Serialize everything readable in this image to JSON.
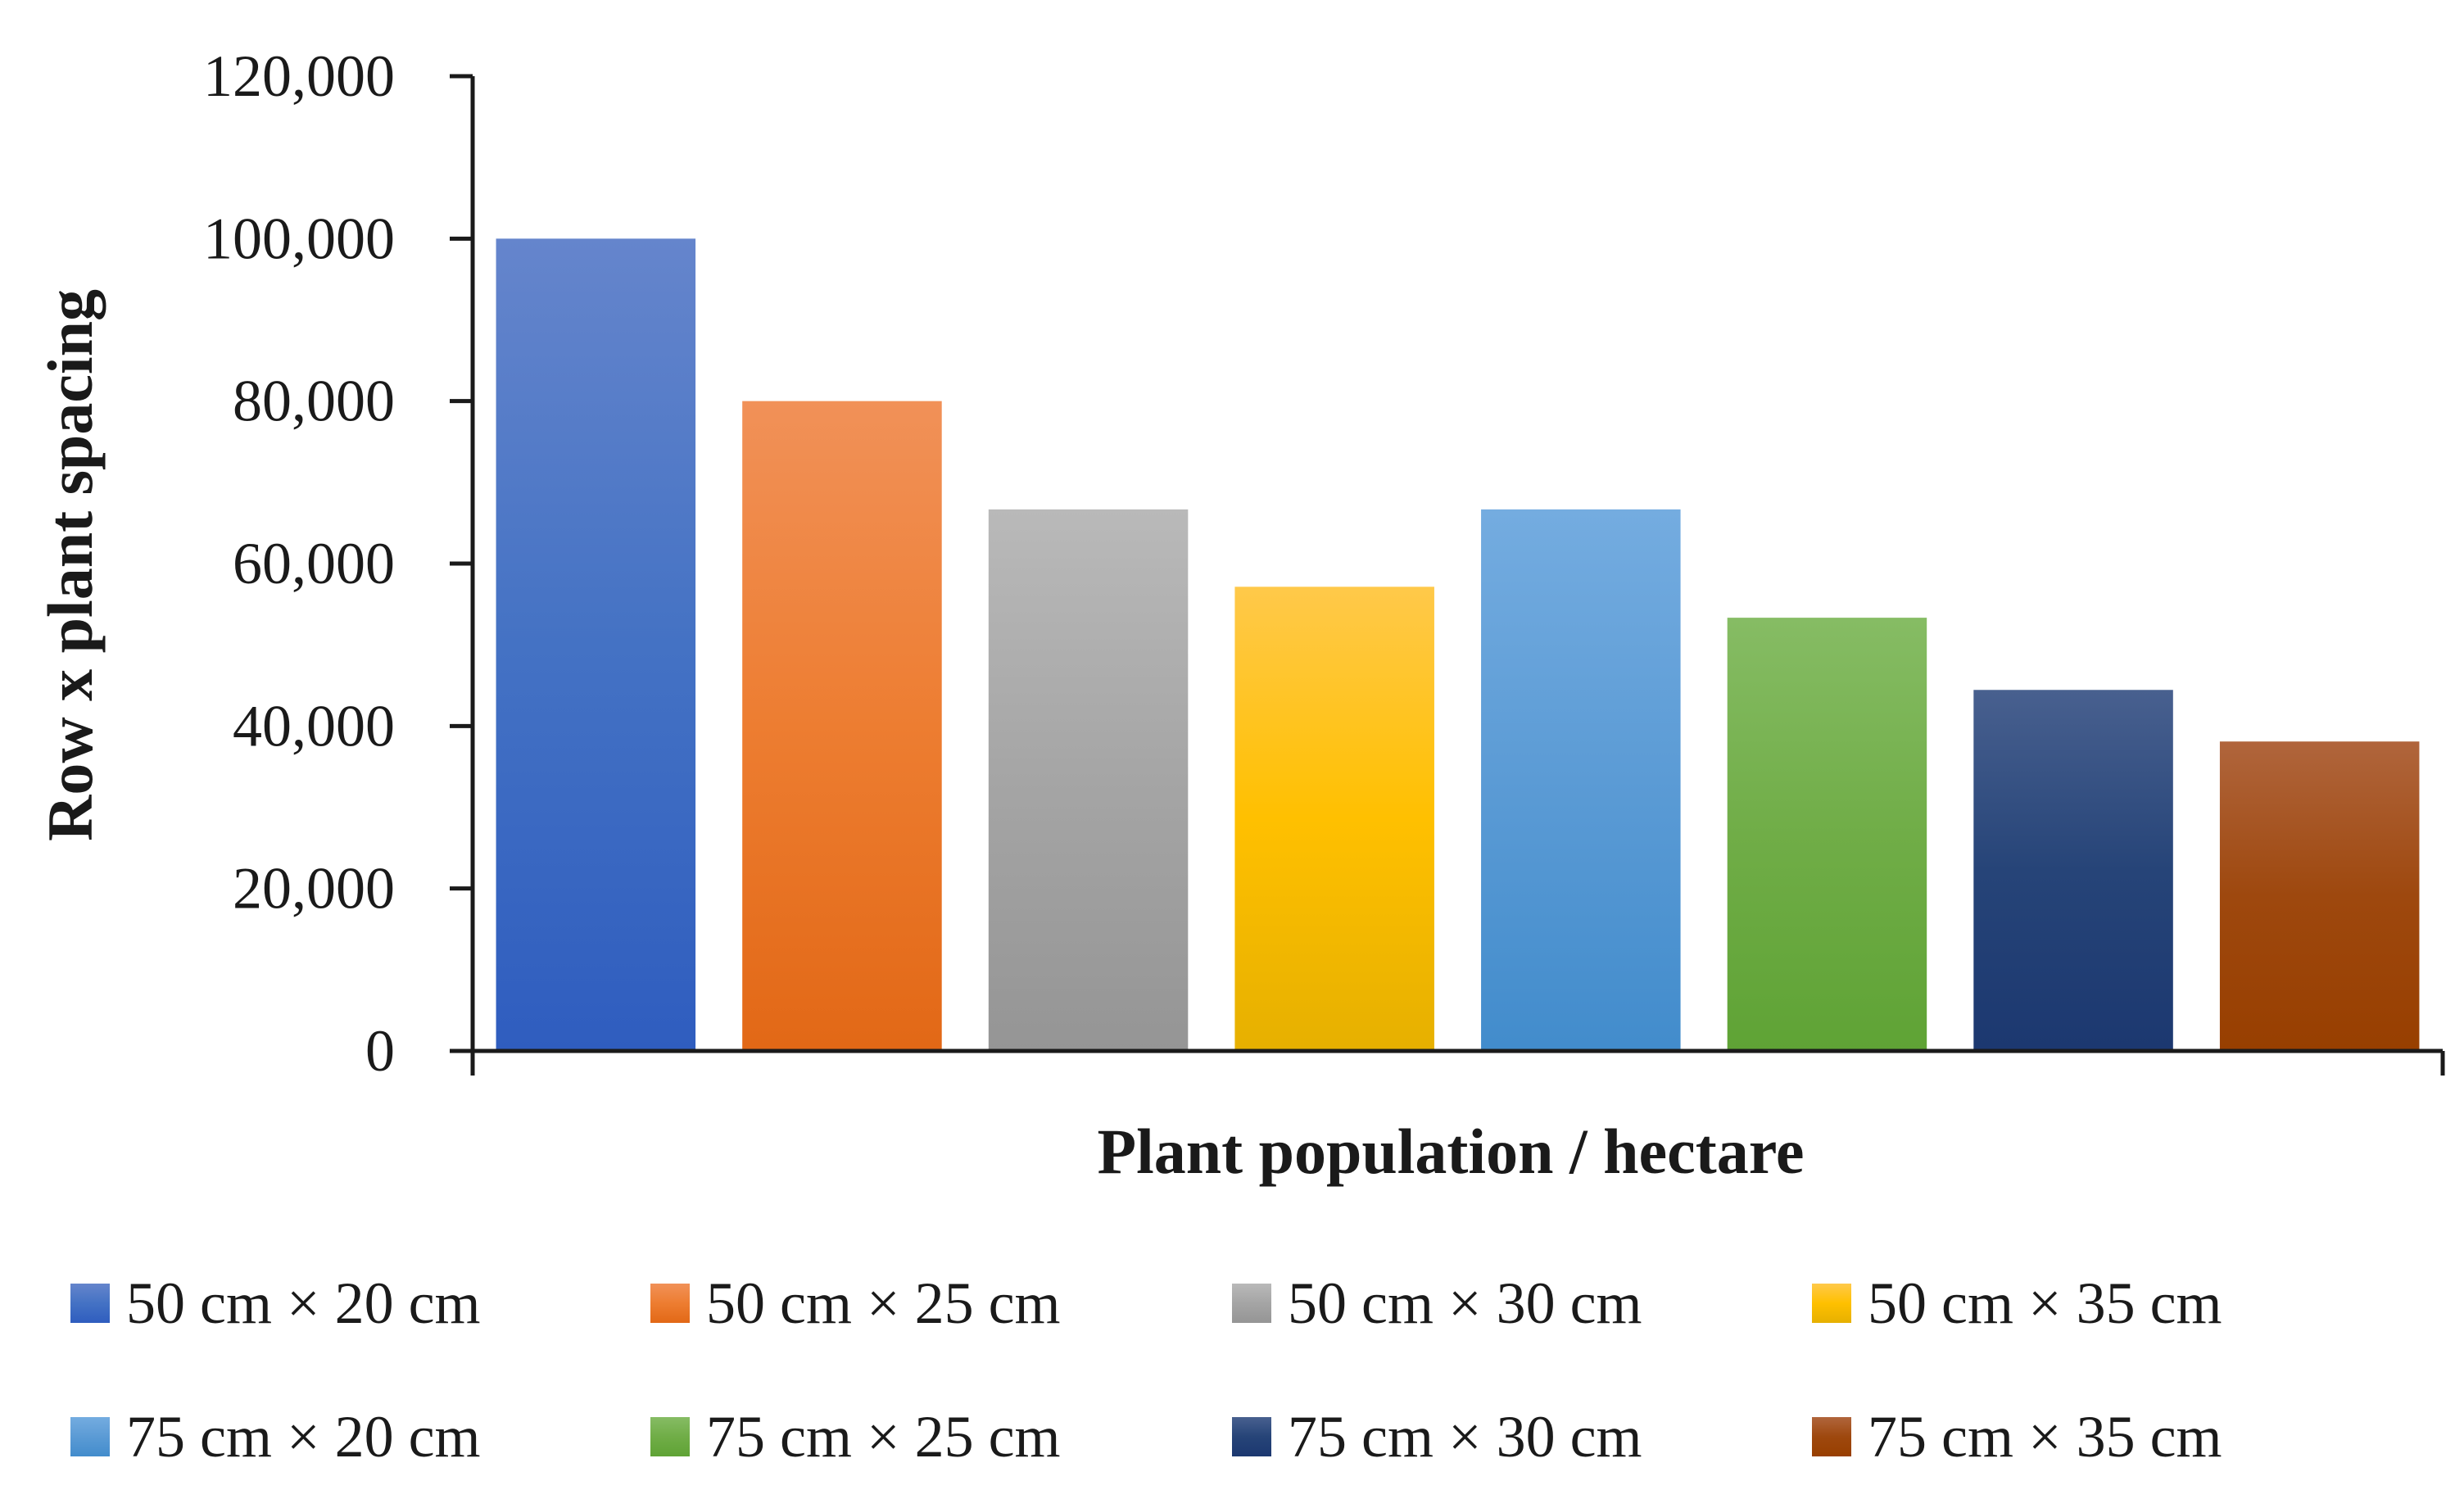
{
  "chart_data": {
    "type": "bar",
    "title": "",
    "xlabel": "Plant population / hectare",
    "ylabel": "Row x plant spacing",
    "ylim": [
      0,
      120000
    ],
    "yticks": [
      0,
      20000,
      40000,
      60000,
      80000,
      100000,
      120000
    ],
    "ytick_labels": [
      "0",
      "20,000",
      "40,000",
      "60,000",
      "80,000",
      "100,000",
      "120,000"
    ],
    "grid": false,
    "legend_position": "bottom",
    "categories": [
      "50 cm × 20 cm",
      "50 cm × 25 cm",
      "50 cm × 30 cm",
      "50 cm × 35 cm",
      "75 cm × 20 cm",
      "75 cm × 25 cm",
      "75 cm × 30 cm",
      "75 cm × 35 cm"
    ],
    "values": [
      100000,
      80000,
      66667,
      57143,
      66667,
      53333,
      44444,
      38095
    ],
    "colors": [
      "#4472c4",
      "#ed7d31",
      "#a5a5a5",
      "#ffc000",
      "#5b9bd5",
      "#70ad47",
      "#264478",
      "#9e480e"
    ],
    "gradient_light": [
      "#6585cc",
      "#f19158",
      "#b9b9b9",
      "#ffc94a",
      "#74ace0",
      "#86bc64",
      "#48608f",
      "#b0653c"
    ],
    "gradient_dark": [
      "#2f5dbf",
      "#e26816",
      "#959595",
      "#e6b000",
      "#428ccc",
      "#5fa335",
      "#1c3870",
      "#983f00"
    ]
  }
}
